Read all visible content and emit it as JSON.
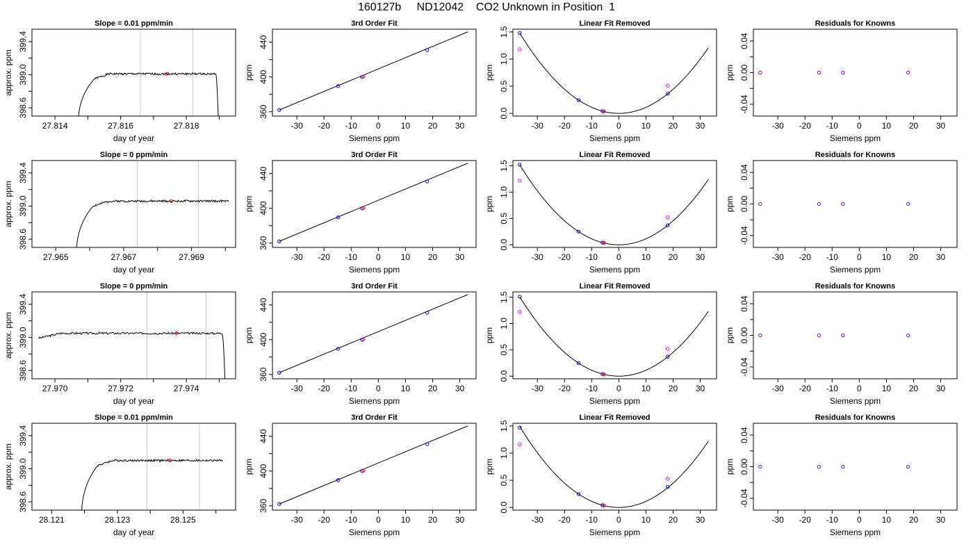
{
  "page": {
    "title": "160127b     ND12042    CO2 Unknown in Position  1"
  },
  "chart_data": [
    {
      "type": "line",
      "title": "Slope =  0.01  ppm/min",
      "xlabel": "day of year",
      "ylabel": "approx. ppm",
      "xlim": [
        27.8133,
        27.8195
      ],
      "ylim": [
        398.5,
        399.55
      ],
      "xticks": [
        27.814,
        27.815,
        27.816,
        27.817,
        27.818,
        27.819
      ],
      "xticklabels": [
        "27.814",
        "",
        "27.816",
        "",
        "27.818",
        ""
      ],
      "yticks": [
        398.6,
        398.8,
        399.0,
        399.2,
        399.4
      ],
      "yticklabels": [
        "398.6",
        "",
        "399.0",
        "",
        "399.4"
      ],
      "vlines": [
        27.8166,
        27.8182
      ],
      "marker": [
        27.8174,
        399.01
      ],
      "curve": {
        "x0": 27.8147,
        "x_rise_end": 27.8152,
        "x_plateau_end": 27.8189,
        "x_end": 27.819,
        "level": 399.01,
        "amp": 0.012,
        "seed": 1
      }
    },
    {
      "type": "line",
      "title": "3rd Order Fit",
      "xlabel": "Siemens ppm",
      "ylabel": "ppm",
      "xlim": [
        -39,
        36
      ],
      "ylim": [
        355,
        455
      ],
      "xticks": [
        -30,
        -20,
        -10,
        0,
        10,
        20,
        30
      ],
      "xticklabels": [
        "-30",
        "-20",
        "-10",
        "0",
        "10",
        "20",
        "30"
      ],
      "yticks": [
        360,
        380,
        400,
        420,
        440
      ],
      "yticklabels": [
        "360",
        "",
        "400",
        "",
        "440"
      ],
      "line": [
        [
          -36.5,
          362
        ],
        [
          33,
          452
        ]
      ],
      "points_blue": [
        [
          -36.5,
          362
        ],
        [
          -14.8,
          389.5
        ],
        [
          -6,
          400
        ],
        [
          18,
          431
        ]
      ],
      "points_red": [
        [
          -5.5,
          400.5
        ]
      ]
    },
    {
      "type": "line",
      "title": "Linear Fit Removed",
      "xlabel": "Siemens ppm",
      "ylabel": "ppm",
      "xlim": [
        -39,
        36
      ],
      "ylim": [
        -0.05,
        1.55
      ],
      "xticks": [
        -30,
        -20,
        -10,
        0,
        10,
        20,
        30
      ],
      "xticklabels": [
        "-30",
        "-20",
        "-10",
        "0",
        "10",
        "20",
        "30"
      ],
      "yticks": [
        0,
        0.5,
        1.0,
        1.5
      ],
      "yticklabels": [
        "0.0",
        "0.5",
        "1.0",
        "1.5"
      ],
      "parabola_a": 0.00111,
      "x_range": [
        -36.5,
        33
      ],
      "points_blue": [
        [
          -36.5,
          1.48
        ],
        [
          -14.8,
          0.243
        ],
        [
          -6,
          0.04
        ],
        [
          18,
          0.36
        ]
      ],
      "points_magenta": [
        [
          -36.5,
          1.18
        ],
        [
          18,
          0.51
        ]
      ],
      "points_red": [
        [
          -5.5,
          0.035
        ]
      ]
    },
    {
      "type": "scatter",
      "title": "Residuals for Knowns",
      "xlabel": "Siemens ppm",
      "ylabel": "ppm",
      "xlim": [
        -39,
        36
      ],
      "ylim": [
        -0.055,
        0.055
      ],
      "xticks": [
        -30,
        -20,
        -10,
        0,
        10,
        20,
        30
      ],
      "xticklabels": [
        "-30",
        "-20",
        "-10",
        "0",
        "10",
        "20",
        "30"
      ],
      "yticks": [
        -0.04,
        -0.02,
        0.0,
        0.02,
        0.04
      ],
      "yticklabels": [
        "-0.04",
        "",
        "0.00",
        "",
        "0.04"
      ],
      "points": [
        [
          -36.5,
          0
        ],
        [
          -14.8,
          0
        ],
        [
          -6,
          0
        ],
        [
          18,
          0
        ]
      ]
    },
    {
      "type": "line",
      "title": "Slope =  0  ppm/min",
      "xlabel": "day of year",
      "ylabel": "approx. ppm",
      "xlim": [
        27.9643,
        27.9703
      ],
      "ylim": [
        398.5,
        399.55
      ],
      "xticks": [
        27.965,
        27.966,
        27.967,
        27.968,
        27.969,
        27.97
      ],
      "xticklabels": [
        "27.965",
        "",
        "27.967",
        "",
        "27.969",
        ""
      ],
      "yticks": [
        398.6,
        398.8,
        399.0,
        399.2,
        399.4
      ],
      "yticklabels": [
        "398.6",
        "",
        "399.0",
        "",
        "399.4"
      ],
      "vlines": [
        27.9674,
        27.9692
      ],
      "marker": [
        27.9684,
        399.06
      ],
      "curve": {
        "x0": 27.9656,
        "x_rise_end": 27.9661,
        "x_plateau_end": 27.9701,
        "x_end": 27.9701,
        "level": 399.06,
        "amp": 0.012,
        "seed": 2
      }
    },
    {
      "type": "line",
      "title": "3rd Order Fit",
      "xlabel": "Siemens ppm",
      "ylabel": "ppm",
      "xlim": [
        -39,
        36
      ],
      "ylim": [
        355,
        455
      ],
      "xticks": [
        -30,
        -20,
        -10,
        0,
        10,
        20,
        30
      ],
      "xticklabels": [
        "-30",
        "-20",
        "-10",
        "0",
        "10",
        "20",
        "30"
      ],
      "yticks": [
        360,
        380,
        400,
        420,
        440
      ],
      "yticklabels": [
        "360",
        "",
        "400",
        "",
        "440"
      ],
      "line": [
        [
          -36.5,
          362
        ],
        [
          33,
          452
        ]
      ],
      "points_blue": [
        [
          -36.5,
          362
        ],
        [
          -14.8,
          389.5
        ],
        [
          -6,
          400
        ],
        [
          18,
          431
        ]
      ],
      "points_red": [
        [
          -5.5,
          400.5
        ]
      ]
    },
    {
      "type": "line",
      "title": "Linear Fit Removed",
      "xlabel": "Siemens ppm",
      "ylabel": "ppm",
      "xlim": [
        -39,
        36
      ],
      "ylim": [
        -0.05,
        1.6
      ],
      "xticks": [
        -30,
        -20,
        -10,
        0,
        10,
        20,
        30
      ],
      "xticklabels": [
        "-30",
        "-20",
        "-10",
        "0",
        "10",
        "20",
        "30"
      ],
      "yticks": [
        0,
        0.5,
        1.0,
        1.5
      ],
      "yticklabels": [
        "0.0",
        "0.5",
        "1.0",
        "1.5"
      ],
      "parabola_a": 0.00114,
      "x_range": [
        -36.5,
        33
      ],
      "points_blue": [
        [
          -36.5,
          1.52
        ],
        [
          -14.8,
          0.25
        ],
        [
          -6,
          0.04
        ],
        [
          18,
          0.37
        ]
      ],
      "points_magenta": [
        [
          -36.5,
          1.22
        ],
        [
          18,
          0.52
        ]
      ],
      "points_red": [
        [
          -5.5,
          0.035
        ]
      ]
    },
    {
      "type": "scatter",
      "title": "Residuals for Knowns",
      "xlabel": "Siemens ppm",
      "ylabel": "ppm",
      "xlim": [
        -39,
        36
      ],
      "ylim": [
        -0.055,
        0.055
      ],
      "xticks": [
        -30,
        -20,
        -10,
        0,
        10,
        20,
        30
      ],
      "xticklabels": [
        "-30",
        "-20",
        "-10",
        "0",
        "10",
        "20",
        "30"
      ],
      "yticks": [
        -0.04,
        -0.02,
        0.0,
        0.02,
        0.04
      ],
      "yticklabels": [
        "-0.04",
        "",
        "0.00",
        "",
        "0.04"
      ],
      "points": [
        [
          -36.5,
          0
        ],
        [
          -14.8,
          0
        ],
        [
          -6,
          0
        ],
        [
          18,
          0
        ]
      ]
    },
    {
      "type": "line",
      "title": "Slope =  0  ppm/min",
      "xlabel": "day of year",
      "ylabel": "approx. ppm",
      "xlim": [
        27.9693,
        27.9755
      ],
      "ylim": [
        398.5,
        399.55
      ],
      "xticks": [
        27.97,
        27.971,
        27.972,
        27.973,
        27.974,
        27.975
      ],
      "xticklabels": [
        "27.970",
        "",
        "27.972",
        "",
        "27.974",
        ""
      ],
      "yticks": [
        398.6,
        398.8,
        399.0,
        399.2,
        399.4
      ],
      "yticklabels": [
        "398.6",
        "",
        "399.0",
        "",
        "399.4"
      ],
      "vlines": [
        27.9728,
        27.9746
      ],
      "marker": [
        27.9737,
        399.05
      ],
      "curve": {
        "x0": 27.9695,
        "x_rise_end": 27.9695,
        "x_plateau_end": 27.9751,
        "x_end": 27.9752,
        "level": 399.05,
        "amp": 0.012,
        "seed": 3
      }
    },
    {
      "type": "line",
      "title": "3rd Order Fit",
      "xlabel": "Siemens ppm",
      "ylabel": "ppm",
      "xlim": [
        -39,
        36
      ],
      "ylim": [
        355,
        455
      ],
      "xticks": [
        -30,
        -20,
        -10,
        0,
        10,
        20,
        30
      ],
      "xticklabels": [
        "-30",
        "-20",
        "-10",
        "0",
        "10",
        "20",
        "30"
      ],
      "yticks": [
        360,
        380,
        400,
        420,
        440
      ],
      "yticklabels": [
        "360",
        "",
        "400",
        "",
        "440"
      ],
      "line": [
        [
          -36.5,
          362
        ],
        [
          33,
          452
        ]
      ],
      "points_blue": [
        [
          -36.5,
          362
        ],
        [
          -14.8,
          389.5
        ],
        [
          -6,
          400
        ],
        [
          18,
          431
        ]
      ],
      "points_red": [
        [
          -5.5,
          400.5
        ]
      ]
    },
    {
      "type": "line",
      "title": "Linear Fit Removed",
      "xlabel": "Siemens ppm",
      "ylabel": "ppm",
      "xlim": [
        -39,
        36
      ],
      "ylim": [
        -0.05,
        1.6
      ],
      "xticks": [
        -30,
        -20,
        -10,
        0,
        10,
        20,
        30
      ],
      "xticklabels": [
        "-30",
        "-20",
        "-10",
        "0",
        "10",
        "20",
        "30"
      ],
      "yticks": [
        0,
        0.5,
        1.0,
        1.5
      ],
      "yticklabels": [
        "0.0",
        "0.5",
        "1.0",
        "1.5"
      ],
      "parabola_a": 0.00113,
      "x_range": [
        -36.5,
        33
      ],
      "points_blue": [
        [
          -36.5,
          1.51
        ],
        [
          -14.8,
          0.248
        ],
        [
          -6,
          0.04
        ],
        [
          18,
          0.37
        ]
      ],
      "points_magenta": [
        [
          -36.5,
          1.22
        ],
        [
          18,
          0.52
        ]
      ],
      "points_red": [
        [
          -5.5,
          0.035
        ]
      ]
    },
    {
      "type": "scatter",
      "title": "Residuals for Knowns",
      "xlabel": "Siemens ppm",
      "ylabel": "ppm",
      "xlim": [
        -39,
        36
      ],
      "ylim": [
        -0.055,
        0.055
      ],
      "xticks": [
        -30,
        -20,
        -10,
        0,
        10,
        20,
        30
      ],
      "xticklabels": [
        "-30",
        "-20",
        "-10",
        "0",
        "10",
        "20",
        "30"
      ],
      "yticks": [
        -0.04,
        -0.02,
        0.0,
        0.02,
        0.04
      ],
      "yticklabels": [
        "-0.04",
        "",
        "0.00",
        "",
        "0.04"
      ],
      "points": [
        [
          -36.5,
          0
        ],
        [
          -14.8,
          0
        ],
        [
          -6,
          0
        ],
        [
          18,
          0
        ]
      ]
    },
    {
      "type": "line",
      "title": "Slope =  0.01  ppm/min",
      "xlabel": "day of year",
      "ylabel": "approx. ppm",
      "xlim": [
        28.1204,
        28.1266
      ],
      "ylim": [
        398.5,
        399.55
      ],
      "xticks": [
        28.121,
        28.122,
        28.123,
        28.124,
        28.125,
        28.126
      ],
      "xticklabels": [
        "28.121",
        "",
        "28.123",
        "",
        "28.125",
        ""
      ],
      "yticks": [
        398.6,
        398.8,
        399.0,
        399.2,
        399.4
      ],
      "yticklabels": [
        "398.6",
        "",
        "399.0",
        "",
        "399.4"
      ],
      "vlines": [
        28.1239,
        28.1255
      ],
      "marker": [
        28.1246,
        399.1
      ],
      "curve": {
        "x0": 28.1219,
        "x_rise_end": 28.1224,
        "x_plateau_end": 28.1262,
        "x_end": 28.1262,
        "level": 399.1,
        "amp": 0.012,
        "seed": 4
      }
    },
    {
      "type": "line",
      "title": "3rd Order Fit",
      "xlabel": "Siemens ppm",
      "ylabel": "ppm",
      "xlim": [
        -39,
        36
      ],
      "ylim": [
        355,
        455
      ],
      "xticks": [
        -30,
        -20,
        -10,
        0,
        10,
        20,
        30
      ],
      "xticklabels": [
        "-30",
        "-20",
        "-10",
        "0",
        "10",
        "20",
        "30"
      ],
      "yticks": [
        360,
        380,
        400,
        420,
        440
      ],
      "yticklabels": [
        "360",
        "",
        "400",
        "",
        "440"
      ],
      "line": [
        [
          -36.5,
          362
        ],
        [
          33,
          452
        ]
      ],
      "points_blue": [
        [
          -36.5,
          362
        ],
        [
          -14.8,
          389.5
        ],
        [
          -6,
          400
        ],
        [
          18,
          431
        ]
      ],
      "points_red": [
        [
          -5.5,
          400.5
        ]
      ]
    },
    {
      "type": "line",
      "title": "Linear Fit Removed",
      "xlabel": "Siemens ppm",
      "ylabel": "ppm",
      "xlim": [
        -39,
        36
      ],
      "ylim": [
        -0.05,
        1.55
      ],
      "xticks": [
        -30,
        -20,
        -10,
        0,
        10,
        20,
        30
      ],
      "xticklabels": [
        "-30",
        "-20",
        "-10",
        "0",
        "10",
        "20",
        "30"
      ],
      "yticks": [
        0,
        0.5,
        1.0,
        1.5
      ],
      "yticklabels": [
        "0.0",
        "0.5",
        "1.0",
        "1.5"
      ],
      "parabola_a": 0.00112,
      "x_range": [
        -36.5,
        33
      ],
      "points_blue": [
        [
          -36.5,
          1.47
        ],
        [
          -14.8,
          0.245
        ],
        [
          -6,
          0.04
        ],
        [
          18,
          0.38
        ]
      ],
      "points_magenta": [
        [
          -36.5,
          1.16
        ],
        [
          18,
          0.53
        ]
      ],
      "points_red": [
        [
          -5.5,
          0.035
        ]
      ]
    },
    {
      "type": "scatter",
      "title": "Residuals for Knowns",
      "xlabel": "Siemens ppm",
      "ylabel": "ppm",
      "xlim": [
        -39,
        36
      ],
      "ylim": [
        -0.055,
        0.055
      ],
      "xticks": [
        -30,
        -20,
        -10,
        0,
        10,
        20,
        30
      ],
      "xticklabels": [
        "-30",
        "-20",
        "-10",
        "0",
        "10",
        "20",
        "30"
      ],
      "yticks": [
        -0.04,
        -0.02,
        0.0,
        0.02,
        0.04
      ],
      "yticklabels": [
        "-0.04",
        "",
        "0.00",
        "",
        "0.04"
      ],
      "points": [
        [
          -36.5,
          0
        ],
        [
          -14.8,
          0
        ],
        [
          -6,
          0
        ],
        [
          18,
          0
        ]
      ]
    }
  ],
  "colors": {
    "axis": "#000000",
    "curve": "#000000",
    "vline": "#c8c8c8",
    "point_blue": "#0000ff",
    "point_red": "#ff0000",
    "point_magenta": "#ff00ff"
  }
}
